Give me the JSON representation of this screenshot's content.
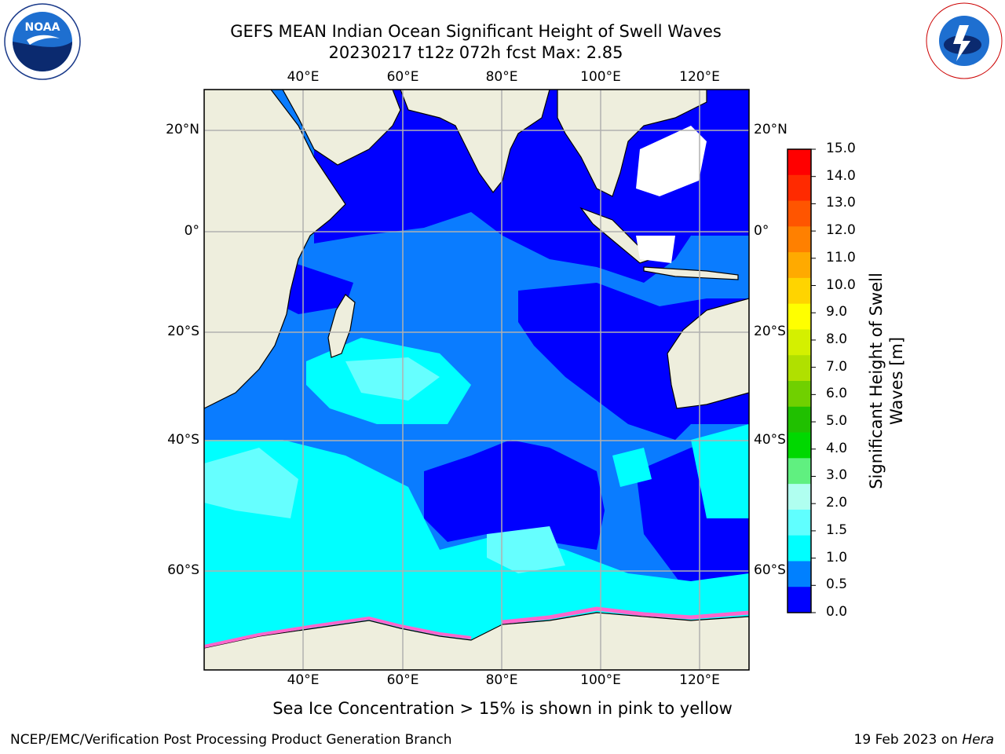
{
  "title_line1": "GEFS MEAN Indian Ocean Significant Height of Swell Waves",
  "title_line2": "20230217 t12z 072h fcst   Max: 2.85",
  "logos": {
    "left": "NOAA",
    "right": "NATIONAL WEATHER SERVICE"
  },
  "lon_labels": [
    "40°E",
    "60°E",
    "80°E",
    "100°E",
    "120°E"
  ],
  "lat_labels": [
    "20°N",
    "0°",
    "20°S",
    "40°S",
    "60°S"
  ],
  "colorbar": {
    "label_line1": "Significant Height of Swell",
    "label_line2": "Waves [m]",
    "ticks": [
      "15.0",
      "14.0",
      "13.0",
      "12.0",
      "11.0",
      "10.0",
      "9.0",
      "8.0",
      "7.0",
      "6.0",
      "5.0",
      "4.0",
      "3.0",
      "2.0",
      "1.5",
      "1.0",
      "0.5",
      "0.0"
    ],
    "colors_top_to_bottom": [
      "#ff0000",
      "#ff2a00",
      "#ff5500",
      "#ff8000",
      "#ffaa00",
      "#ffd400",
      "#ffff00",
      "#d4f000",
      "#b0e000",
      "#70d000",
      "#20c000",
      "#00d800",
      "#60f080",
      "#b0fff0",
      "#60ffff",
      "#00ffff",
      "#0080ff",
      "#0000ff"
    ]
  },
  "map_colors": {
    "land": "#eeeedd",
    "deep": "#0000ff",
    "mid": "#0a7cff",
    "cyan": "#00ffff",
    "light": "#66ffff",
    "ice": "#ff66cc"
  },
  "note": "Sea Ice Concentration > 15% is shown in pink to yellow",
  "footer_left": "NCEP/EMC/Verification Post Processing Product Generation Branch",
  "footer_date": "19 Feb 2023 on",
  "footer_host": "Hera"
}
